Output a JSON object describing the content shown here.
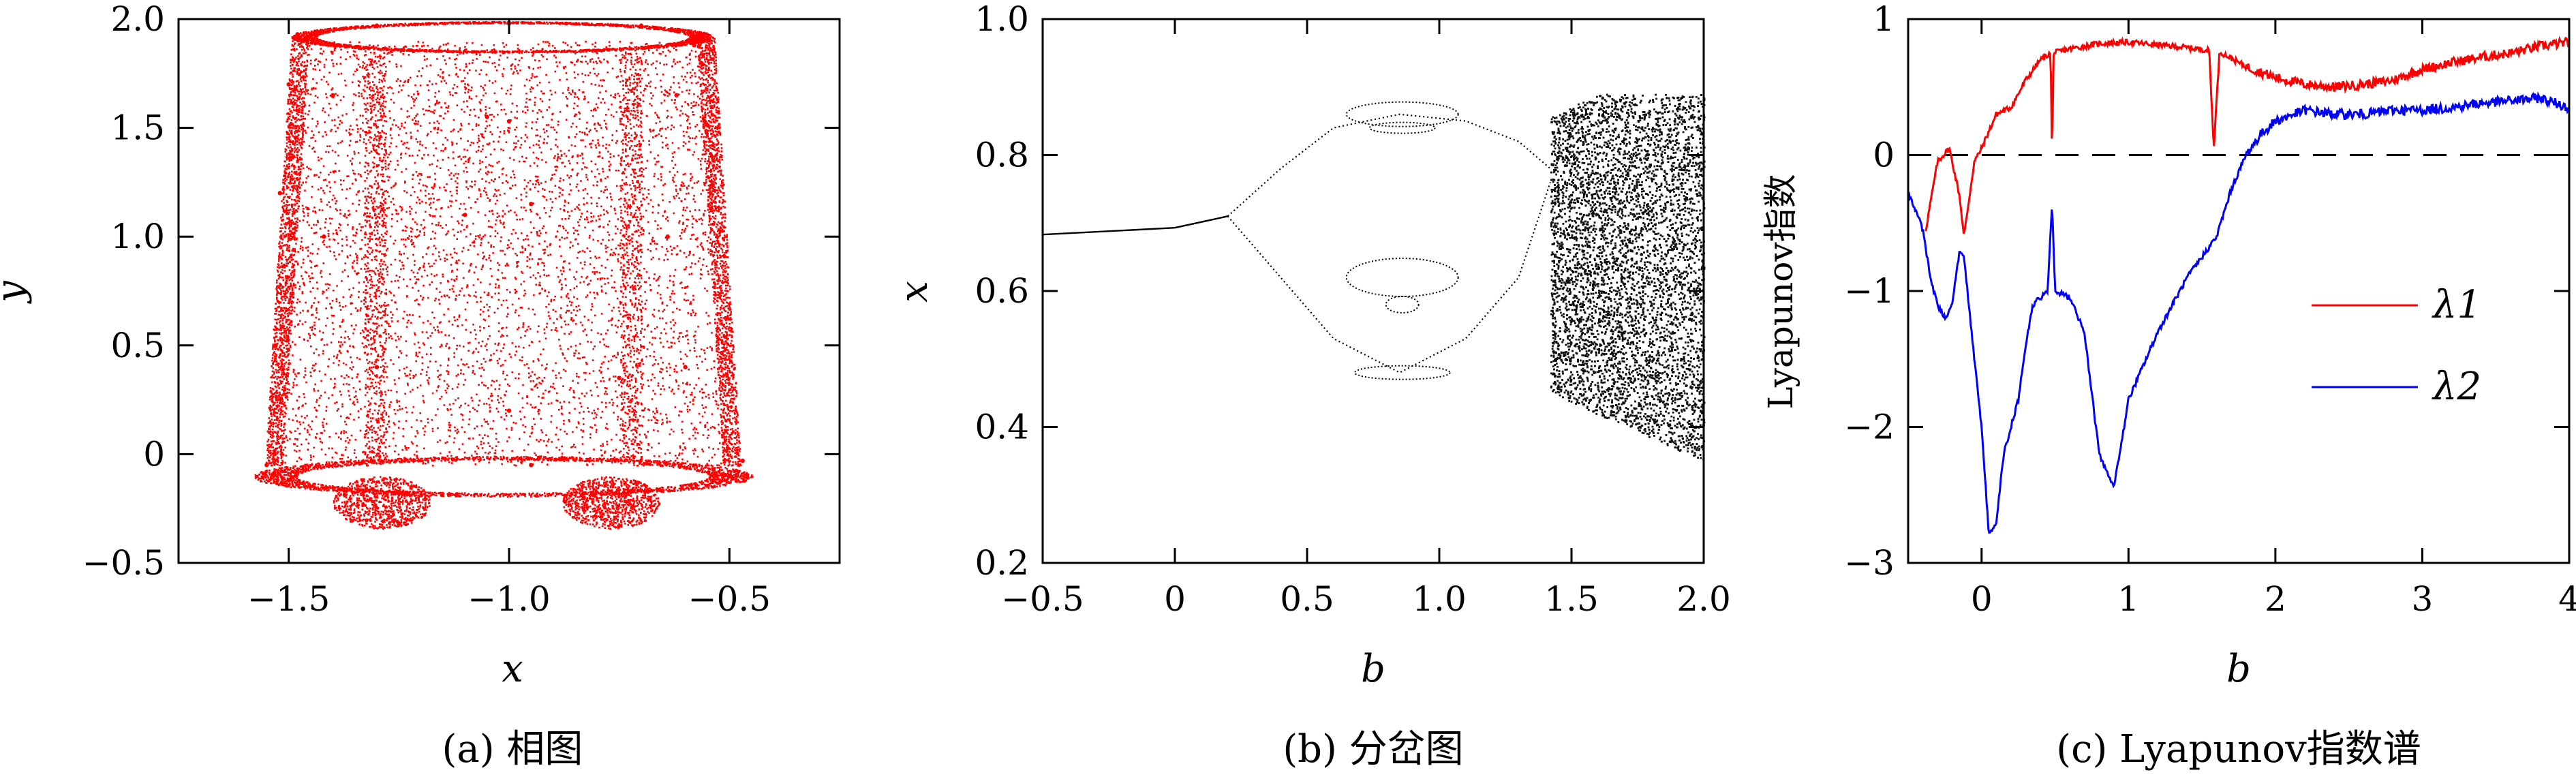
{
  "chart_data": [
    {
      "type": "scatter",
      "xlabel": "x",
      "ylabel": "y",
      "caption": "(a) 相图",
      "xlim": [
        -1.75,
        -0.25
      ],
      "ylim": [
        -0.5,
        2.0
      ],
      "xticks": [
        -1.5,
        -1.0,
        -0.5
      ],
      "xtick_labels": [
        "−1.5",
        "−1.0",
        "−0.5"
      ],
      "yticks": [
        -0.5,
        0,
        0.5,
        1.0,
        1.5,
        2.0
      ],
      "ytick_labels": [
        "−0.5",
        "0",
        "0.5",
        "1.0",
        "1.5",
        "2.0"
      ],
      "color": "#ff0000",
      "attractor_points": [
        [
          -1.48,
          1.93
        ],
        [
          -1.3,
          1.97
        ],
        [
          -1.0,
          1.98
        ],
        [
          -0.7,
          1.97
        ],
        [
          -0.58,
          1.88
        ],
        [
          -1.5,
          1.7
        ],
        [
          -1.4,
          1.65
        ],
        [
          -1.05,
          1.55
        ],
        [
          -1.0,
          1.53
        ],
        [
          -0.62,
          1.65
        ],
        [
          -1.52,
          1.2
        ],
        [
          -1.42,
          1.0
        ],
        [
          -1.1,
          1.1
        ],
        [
          -0.95,
          1.15
        ],
        [
          -0.64,
          1.0
        ],
        [
          -1.53,
          0.5
        ],
        [
          -1.3,
          0.4
        ],
        [
          -1.0,
          0.2
        ],
        [
          -0.75,
          0.35
        ],
        [
          -0.6,
          0.4
        ],
        [
          -1.55,
          -0.05
        ],
        [
          -1.5,
          -0.12
        ],
        [
          -1.25,
          -0.32
        ],
        [
          -0.95,
          -0.05
        ],
        [
          -0.75,
          -0.33
        ],
        [
          -0.5,
          -0.1
        ],
        [
          -0.47,
          -0.03
        ]
      ]
    },
    {
      "type": "scatter",
      "xlabel": "b",
      "ylabel": "x",
      "caption": "(b) 分岔图",
      "xlim": [
        -0.5,
        2.0
      ],
      "ylim": [
        0.2,
        1.0
      ],
      "xticks": [
        -0.5,
        0,
        0.5,
        1.0,
        1.5,
        2.0
      ],
      "xtick_labels": [
        "−0.5",
        "0",
        "0.5",
        "1.0",
        "1.5",
        "2.0"
      ],
      "yticks": [
        0.2,
        0.4,
        0.6,
        0.8,
        1.0
      ],
      "ytick_labels": [
        "0.2",
        "0.4",
        "0.6",
        "0.8",
        "1.0"
      ],
      "color": "#000000",
      "fixed_point_branch": [
        [
          -0.5,
          0.683
        ],
        [
          0.0,
          0.693
        ],
        [
          0.2,
          0.71
        ]
      ],
      "upper_branch": [
        [
          0.2,
          0.71
        ],
        [
          0.4,
          0.78
        ],
        [
          0.6,
          0.84
        ],
        [
          0.85,
          0.86
        ],
        [
          1.1,
          0.85
        ],
        [
          1.3,
          0.82
        ],
        [
          1.42,
          0.78
        ]
      ],
      "lower_branch": [
        [
          0.2,
          0.71
        ],
        [
          0.4,
          0.62
        ],
        [
          0.6,
          0.53
        ],
        [
          0.85,
          0.48
        ],
        [
          1.1,
          0.53
        ],
        [
          1.3,
          0.62
        ],
        [
          1.42,
          0.76
        ]
      ],
      "chaotic_region": {
        "b_start": 1.42,
        "b_end": 2.0,
        "x_min": 0.35,
        "x_max": 0.89
      }
    },
    {
      "type": "line",
      "xlabel": "b",
      "ylabel": "Lyapunov指数",
      "caption": "(c) Lyapunov指数谱",
      "xlim": [
        -0.5,
        4.0
      ],
      "ylim": [
        -3.0,
        1.0
      ],
      "xticks": [
        0,
        1,
        2,
        3,
        4
      ],
      "xtick_labels": [
        "0",
        "1",
        "2",
        "3",
        "4"
      ],
      "yticks": [
        -3,
        -2,
        -1,
        0,
        1
      ],
      "ytick_labels": [
        "−3",
        "−2",
        "−1",
        "0",
        "1"
      ],
      "zero_line": true,
      "legend_position": "right",
      "series": [
        {
          "name": "λ1",
          "color": "#ff0000",
          "points": [
            [
              -0.38,
              -0.55
            ],
            [
              -0.3,
              -0.05
            ],
            [
              -0.22,
              0.05
            ],
            [
              -0.15,
              -0.3
            ],
            [
              -0.12,
              -0.6
            ],
            [
              -0.05,
              -0.05
            ],
            [
              0.0,
              0.05
            ],
            [
              0.1,
              0.3
            ],
            [
              0.2,
              0.35
            ],
            [
              0.3,
              0.55
            ],
            [
              0.4,
              0.7
            ],
            [
              0.47,
              0.75
            ],
            [
              0.48,
              -0.05
            ],
            [
              0.49,
              0.75
            ],
            [
              0.6,
              0.78
            ],
            [
              0.8,
              0.82
            ],
            [
              1.0,
              0.83
            ],
            [
              1.2,
              0.81
            ],
            [
              1.4,
              0.79
            ],
            [
              1.55,
              0.77
            ],
            [
              1.58,
              0.05
            ],
            [
              1.62,
              0.76
            ],
            [
              1.8,
              0.65
            ],
            [
              2.0,
              0.57
            ],
            [
              2.2,
              0.52
            ],
            [
              2.4,
              0.5
            ],
            [
              2.6,
              0.52
            ],
            [
              2.8,
              0.55
            ],
            [
              3.0,
              0.63
            ],
            [
              3.2,
              0.68
            ],
            [
              3.4,
              0.72
            ],
            [
              3.6,
              0.75
            ],
            [
              3.8,
              0.8
            ],
            [
              4.0,
              0.83
            ]
          ]
        },
        {
          "name": "λ2",
          "color": "#0000ff",
          "points": [
            [
              -0.5,
              -0.28
            ],
            [
              -0.45,
              -0.4
            ],
            [
              -0.4,
              -0.55
            ],
            [
              -0.35,
              -0.9
            ],
            [
              -0.3,
              -1.1
            ],
            [
              -0.25,
              -1.2
            ],
            [
              -0.2,
              -1.1
            ],
            [
              -0.15,
              -0.7
            ],
            [
              -0.12,
              -0.75
            ],
            [
              -0.05,
              -1.5
            ],
            [
              0.0,
              -2.0
            ],
            [
              0.05,
              -2.8
            ],
            [
              0.1,
              -2.7
            ],
            [
              0.15,
              -2.2
            ],
            [
              0.2,
              -2.0
            ],
            [
              0.25,
              -1.8
            ],
            [
              0.3,
              -1.4
            ],
            [
              0.35,
              -1.1
            ],
            [
              0.45,
              -1.0
            ],
            [
              0.48,
              -0.35
            ],
            [
              0.5,
              -1.0
            ],
            [
              0.6,
              -1.05
            ],
            [
              0.7,
              -1.3
            ],
            [
              0.8,
              -2.2
            ],
            [
              0.9,
              -2.45
            ],
            [
              1.0,
              -1.8
            ],
            [
              1.2,
              -1.3
            ],
            [
              1.4,
              -0.9
            ],
            [
              1.6,
              -0.6
            ],
            [
              1.7,
              -0.25
            ],
            [
              1.8,
              0.0
            ],
            [
              1.9,
              0.15
            ],
            [
              2.0,
              0.25
            ],
            [
              2.2,
              0.33
            ],
            [
              2.4,
              0.3
            ],
            [
              2.6,
              0.3
            ],
            [
              2.8,
              0.33
            ],
            [
              3.0,
              0.33
            ],
            [
              3.2,
              0.35
            ],
            [
              3.4,
              0.38
            ],
            [
              3.6,
              0.4
            ],
            [
              3.8,
              0.42
            ],
            [
              4.0,
              0.35
            ]
          ]
        }
      ]
    }
  ]
}
